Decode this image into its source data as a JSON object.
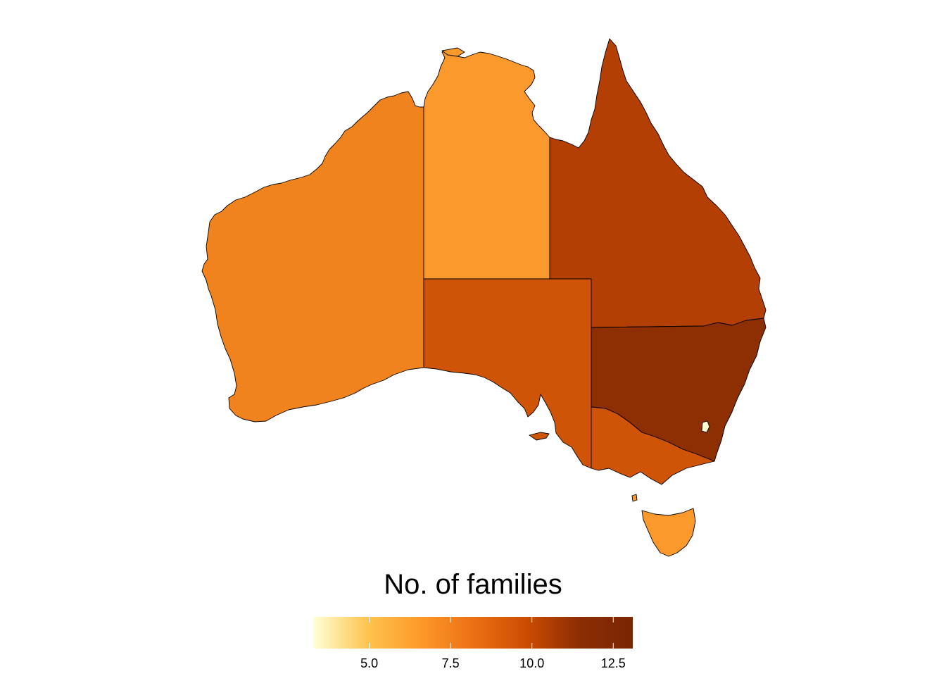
{
  "legend": {
    "title": "No. of families",
    "min": 3.3,
    "max": 13.1,
    "ticks": [
      "5.0",
      "7.5",
      "10.0",
      "12.5"
    ],
    "tick_values": [
      5.0,
      7.5,
      10.0,
      12.5
    ],
    "colors": [
      "#ffffd4",
      "#fec44f",
      "#fe9929",
      "#ec7014",
      "#cc4c02",
      "#8c2d04",
      "#7a2504"
    ]
  },
  "regions": [
    {
      "id": "wa",
      "name": "Western Australia",
      "value": 8.3,
      "color": "#f0831e"
    },
    {
      "id": "nt",
      "name": "Northern Territory",
      "value": 7.4,
      "color": "#fb992d"
    },
    {
      "id": "qld",
      "name": "Queensland",
      "value": 11.6,
      "color": "#b33f04"
    },
    {
      "id": "sa",
      "name": "South Australia",
      "value": 10.0,
      "color": "#d05408"
    },
    {
      "id": "nsw",
      "name": "New South Wales",
      "value": 12.9,
      "color": "#8e2e03"
    },
    {
      "id": "vic",
      "name": "Victoria",
      "value": 10.0,
      "color": "#d05408"
    },
    {
      "id": "tas",
      "name": "Tasmania",
      "value": 7.4,
      "color": "#fb992d"
    },
    {
      "id": "act",
      "name": "Australian Capital Territory",
      "value": 3.3,
      "color": "#ffffd4"
    }
  ]
}
